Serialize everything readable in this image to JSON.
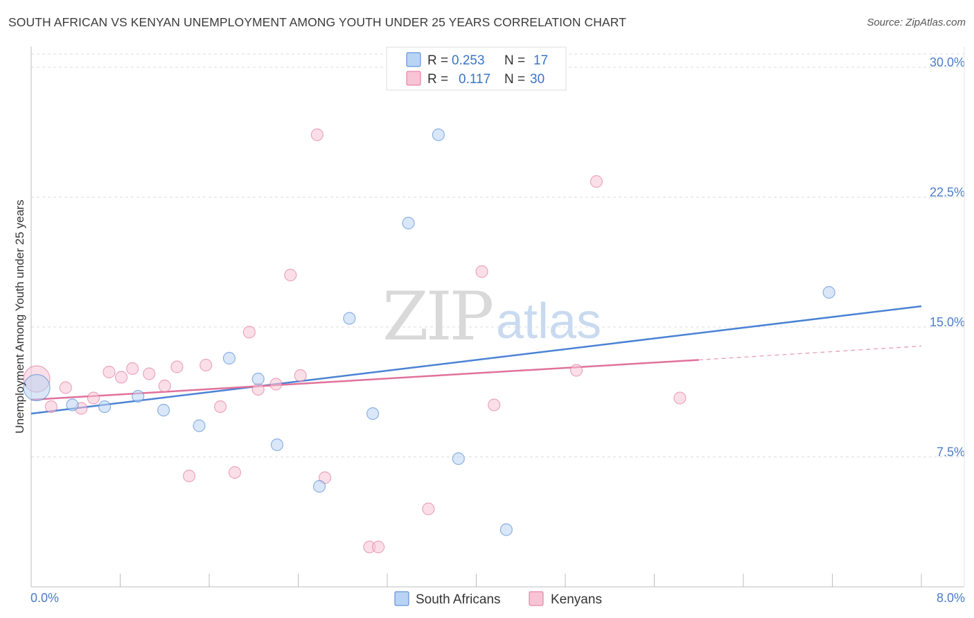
{
  "title": "SOUTH AFRICAN VS KENYAN UNEMPLOYMENT AMONG YOUTH UNDER 25 YEARS CORRELATION CHART",
  "source": "Source: ZipAtlas.com",
  "watermark": {
    "zip": "ZIP",
    "atlas": "atlas"
  },
  "chart_data": {
    "type": "scatter",
    "xlabel": "",
    "ylabel": "Unemployment Among Youth under 25 years",
    "xlim": [
      0,
      8
    ],
    "ylim": [
      0,
      30
    ],
    "y_ticks": [
      {
        "value": 7.5,
        "label": "7.5%"
      },
      {
        "value": 15,
        "label": "15.0%"
      },
      {
        "value": 22.5,
        "label": "22.5%"
      },
      {
        "value": 30,
        "label": "30.0%"
      }
    ],
    "x_tick_labels": {
      "min": "0.0%",
      "max": "8.0%"
    },
    "x_minor_ticks": [
      0.8,
      1.6,
      2.4,
      3.2,
      4.0,
      4.8,
      5.6,
      6.4,
      7.2,
      8.0
    ],
    "grid": true,
    "legend_position": "top-center",
    "series": [
      {
        "name": "South Africans",
        "color": "#4a82d4",
        "fill": "#b9d3f3",
        "r_label": "R =",
        "r_value": "0.253",
        "n_label": "N =",
        "n_value": "17",
        "trend": {
          "x0": 0.0,
          "y0": 10.0,
          "x1": 8.0,
          "y1": 16.2
        },
        "points": [
          {
            "x": 0.05,
            "y": 11.5,
            "big": true
          },
          {
            "x": 0.37,
            "y": 10.5
          },
          {
            "x": 0.66,
            "y": 10.4
          },
          {
            "x": 0.96,
            "y": 11.0
          },
          {
            "x": 1.19,
            "y": 10.2
          },
          {
            "x": 1.51,
            "y": 9.3
          },
          {
            "x": 1.78,
            "y": 13.2
          },
          {
            "x": 2.04,
            "y": 12.0
          },
          {
            "x": 2.21,
            "y": 8.2
          },
          {
            "x": 2.59,
            "y": 5.8
          },
          {
            "x": 2.86,
            "y": 15.5
          },
          {
            "x": 3.07,
            "y": 10.0
          },
          {
            "x": 3.39,
            "y": 21.0
          },
          {
            "x": 3.66,
            "y": 26.1
          },
          {
            "x": 3.84,
            "y": 7.4
          },
          {
            "x": 4.27,
            "y": 3.3
          },
          {
            "x": 7.17,
            "y": 17.0
          }
        ]
      },
      {
        "name": "Kenyans",
        "color": "#e0719a",
        "fill": "#f7c4d5",
        "r_label": "R =",
        "r_value": "0.117",
        "n_label": "N =",
        "n_value": "30",
        "trend": {
          "x0": 0.0,
          "y0": 10.8,
          "x1": 6.0,
          "y1": 13.1
        },
        "trend_dashed": {
          "x0": 6.0,
          "y0": 13.1,
          "x1": 8.0,
          "y1": 13.9
        },
        "points": [
          {
            "x": 0.05,
            "y": 12.0,
            "big": true
          },
          {
            "x": 0.18,
            "y": 10.4
          },
          {
            "x": 0.31,
            "y": 11.5
          },
          {
            "x": 0.45,
            "y": 10.3
          },
          {
            "x": 0.56,
            "y": 10.9
          },
          {
            "x": 0.7,
            "y": 12.4
          },
          {
            "x": 0.81,
            "y": 12.1
          },
          {
            "x": 0.91,
            "y": 12.6
          },
          {
            "x": 1.06,
            "y": 12.3
          },
          {
            "x": 1.2,
            "y": 11.6
          },
          {
            "x": 1.31,
            "y": 12.7
          },
          {
            "x": 1.42,
            "y": 6.4
          },
          {
            "x": 1.57,
            "y": 12.8
          },
          {
            "x": 1.7,
            "y": 10.4
          },
          {
            "x": 1.83,
            "y": 6.6
          },
          {
            "x": 1.96,
            "y": 14.7
          },
          {
            "x": 2.04,
            "y": 11.4
          },
          {
            "x": 2.2,
            "y": 11.7
          },
          {
            "x": 2.33,
            "y": 18.0
          },
          {
            "x": 2.42,
            "y": 12.2
          },
          {
            "x": 2.57,
            "y": 26.1
          },
          {
            "x": 2.64,
            "y": 6.3
          },
          {
            "x": 3.04,
            "y": 2.3
          },
          {
            "x": 3.12,
            "y": 2.3
          },
          {
            "x": 3.57,
            "y": 4.5
          },
          {
            "x": 4.05,
            "y": 18.2
          },
          {
            "x": 4.16,
            "y": 10.5
          },
          {
            "x": 4.9,
            "y": 12.5
          },
          {
            "x": 5.08,
            "y": 23.4
          },
          {
            "x": 5.83,
            "y": 10.9
          }
        ]
      }
    ]
  }
}
